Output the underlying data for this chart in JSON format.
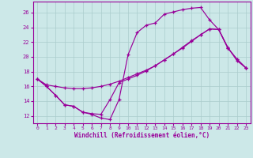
{
  "xlabel": "Windchill (Refroidissement éolien,°C)",
  "background_color": "#cce8e8",
  "grid_color": "#aacccc",
  "line_color": "#990099",
  "ylim": [
    11.0,
    27.5
  ],
  "xlim": [
    -0.5,
    23.5
  ],
  "yticks": [
    12,
    14,
    16,
    18,
    20,
    22,
    24,
    26
  ],
  "xticks": [
    0,
    1,
    2,
    3,
    4,
    5,
    6,
    7,
    8,
    9,
    10,
    11,
    12,
    13,
    14,
    15,
    16,
    17,
    18,
    19,
    20,
    21,
    22,
    23
  ],
  "curve1_x": [
    0,
    1,
    2,
    3,
    4,
    5,
    6,
    7,
    8,
    9,
    10,
    11,
    12,
    13,
    14,
    15,
    16,
    17,
    18,
    19,
    20,
    21,
    22,
    23
  ],
  "curve1_y": [
    17.0,
    16.0,
    14.8,
    13.5,
    13.3,
    12.5,
    12.2,
    11.7,
    11.5,
    14.2,
    20.3,
    23.3,
    24.3,
    24.6,
    25.8,
    26.1,
    26.4,
    26.6,
    26.7,
    25.0,
    23.7,
    21.3,
    19.5,
    18.5
  ],
  "curve2_x": [
    0,
    1,
    2,
    3,
    4,
    5,
    6,
    7,
    8,
    9,
    10,
    11,
    12,
    13,
    14,
    15,
    16,
    17,
    18,
    19,
    20,
    21,
    22,
    23
  ],
  "curve2_y": [
    17.0,
    16.2,
    16.0,
    15.8,
    15.7,
    15.7,
    15.8,
    16.0,
    16.3,
    16.7,
    17.2,
    17.7,
    18.2,
    18.8,
    19.6,
    20.4,
    21.3,
    22.2,
    23.0,
    23.8,
    23.7,
    21.2,
    19.7,
    18.5
  ],
  "curve3_x": [
    0,
    1,
    2,
    3,
    4,
    5,
    6,
    7,
    8,
    9,
    10,
    11,
    12,
    13,
    14,
    15,
    16,
    17,
    18,
    19,
    20,
    21,
    22,
    23
  ],
  "curve3_y": [
    17.0,
    16.0,
    14.8,
    13.5,
    13.3,
    12.5,
    12.3,
    12.2,
    14.2,
    16.5,
    17.0,
    17.5,
    18.1,
    18.8,
    19.6,
    20.4,
    21.2,
    22.1,
    23.0,
    23.8,
    23.7,
    21.2,
    19.7,
    18.5
  ]
}
